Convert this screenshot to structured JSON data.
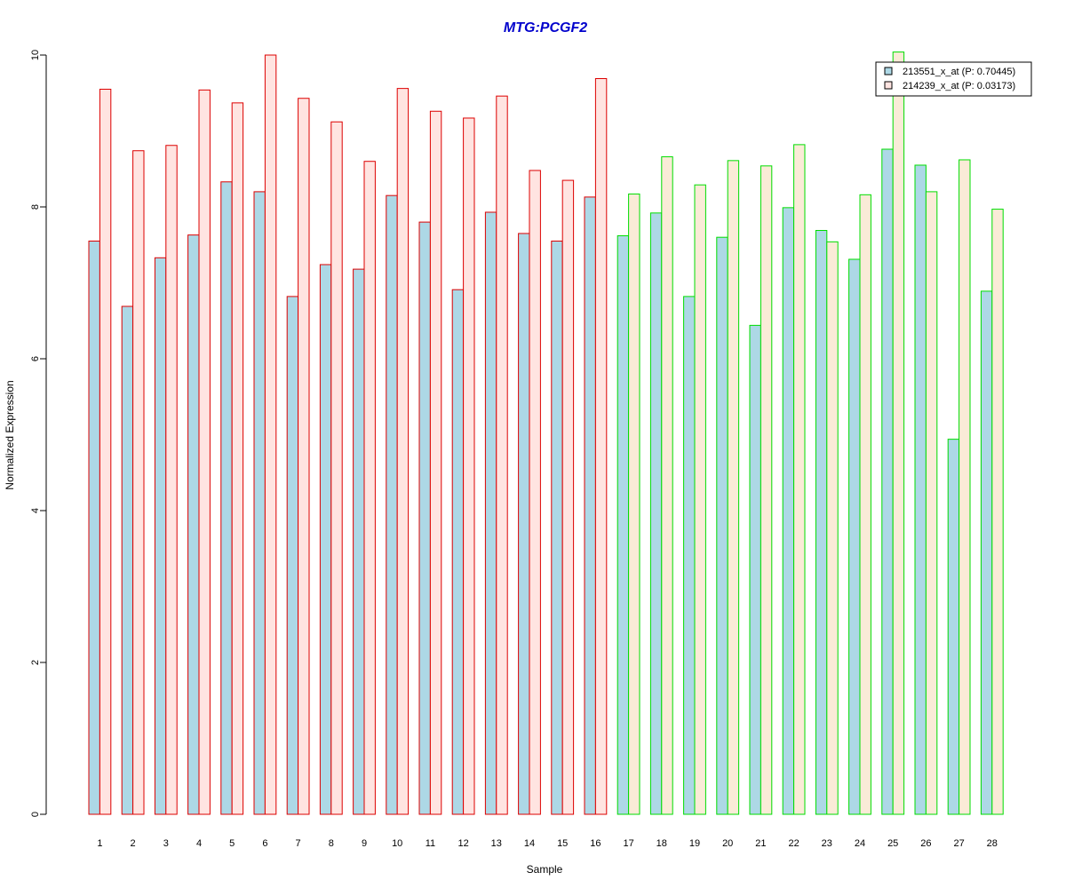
{
  "chart_data": {
    "type": "bar",
    "title": "MTG:PCGF2",
    "xlabel": "Sample",
    "ylabel": "Normalized Expression",
    "ylim": [
      0,
      10
    ],
    "yticks": [
      0,
      2,
      4,
      6,
      8,
      10
    ],
    "categories": [
      "1",
      "2",
      "3",
      "4",
      "5",
      "6",
      "7",
      "8",
      "9",
      "10",
      "11",
      "12",
      "13",
      "14",
      "15",
      "16",
      "17",
      "18",
      "19",
      "20",
      "21",
      "22",
      "23",
      "24",
      "25",
      "26",
      "27",
      "28"
    ],
    "series": [
      {
        "name": "213551_x_at (P: 0.70445)",
        "values": [
          7.55,
          6.69,
          7.33,
          7.63,
          8.33,
          8.2,
          6.82,
          7.24,
          7.18,
          8.15,
          7.8,
          6.91,
          7.93,
          7.65,
          7.55,
          8.13,
          7.62,
          7.92,
          6.82,
          7.6,
          6.44,
          7.99,
          7.69,
          7.31,
          8.76,
          8.55,
          4.94,
          6.89
        ]
      },
      {
        "name": "214239_x_at (P: 0.03173)",
        "values": [
          9.55,
          8.74,
          8.81,
          9.54,
          9.37,
          10.0,
          9.43,
          9.12,
          8.6,
          9.56,
          9.26,
          9.17,
          9.46,
          8.48,
          8.35,
          9.69,
          8.17,
          8.66,
          8.29,
          8.61,
          8.54,
          8.82,
          7.54,
          8.16,
          10.04,
          8.2,
          8.62,
          7.97
        ]
      }
    ],
    "groups": [
      {
        "samples": [
          1,
          16
        ],
        "border_color": "#dd0000"
      },
      {
        "samples": [
          17,
          28
        ],
        "border_color": "#00dd00"
      }
    ],
    "series_fill": {
      "group1": [
        "#add8e6",
        "#ffe4e1"
      ],
      "group2": [
        "#add8e6",
        "#faebd7"
      ]
    },
    "title_color": "#0000cc",
    "legend": {
      "position": "top-right"
    },
    "grid": false
  }
}
